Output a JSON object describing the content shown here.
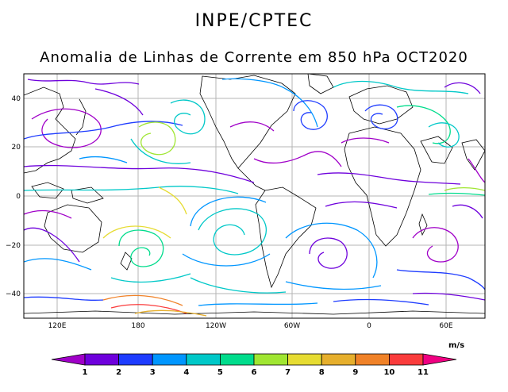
{
  "header": {
    "organization": "INPE/CPTEC",
    "title": "Anomalia de Linhas de Corrente em 850 hPa OCT2020"
  },
  "map": {
    "lat_ticks": [
      "40",
      "20",
      "0",
      "−20",
      "−40"
    ],
    "lon_ticks": [
      "120E",
      "180",
      "120W",
      "60W",
      "0",
      "60E"
    ]
  },
  "colorbar": {
    "units": "m/s",
    "labels": [
      "1",
      "2",
      "3",
      "4",
      "5",
      "6",
      "7",
      "8",
      "9",
      "10",
      "11"
    ],
    "colors": [
      "#a000c8",
      "#6e00dc",
      "#1e3cff",
      "#0096ff",
      "#00c8c8",
      "#00dc8c",
      "#a0e632",
      "#e6dc32",
      "#e6af2d",
      "#f08228",
      "#fa3c3c",
      "#f00082"
    ]
  }
}
